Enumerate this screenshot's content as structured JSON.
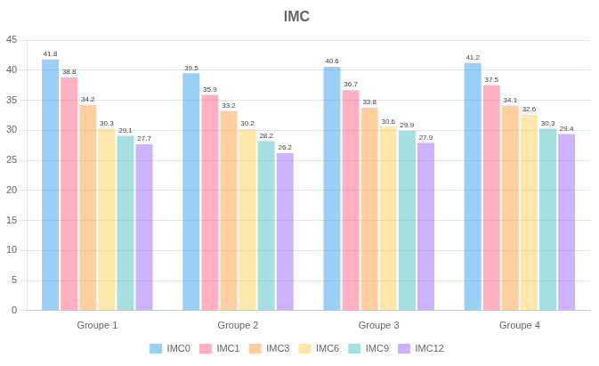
{
  "chart_data": {
    "type": "bar",
    "title": "IMC",
    "categories": [
      "Groupe 1",
      "Groupe 2",
      "Groupe 3",
      "Groupe 4"
    ],
    "series": [
      {
        "name": "IMC0",
        "values": [
          41.8,
          39.5,
          40.6,
          41.2
        ]
      },
      {
        "name": "IMC1",
        "values": [
          38.8,
          35.9,
          36.7,
          37.5
        ]
      },
      {
        "name": "IMC3",
        "values": [
          34.2,
          33.2,
          33.8,
          34.1
        ]
      },
      {
        "name": "IMC6",
        "values": [
          30.3,
          30.2,
          30.6,
          32.6
        ]
      },
      {
        "name": "IMC9",
        "values": [
          29.1,
          28.2,
          29.9,
          30.3
        ]
      },
      {
        "name": "IMC12",
        "values": [
          27.7,
          26.2,
          27.9,
          29.4
        ]
      }
    ],
    "ylim": [
      0,
      45
    ],
    "yticks": [
      0,
      5,
      10,
      15,
      20,
      25,
      30,
      35,
      40,
      45
    ],
    "grid": true,
    "legend": "bottom",
    "data_labels": true
  }
}
